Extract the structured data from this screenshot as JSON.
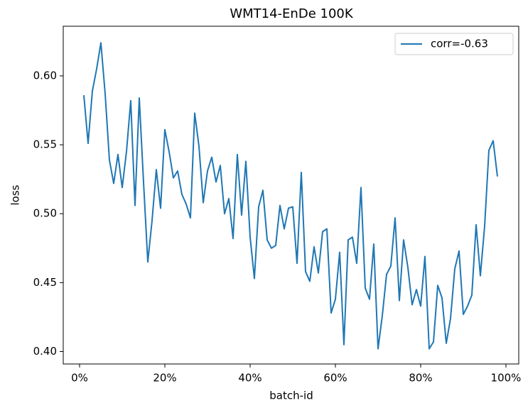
{
  "chart_data": {
    "type": "line",
    "title": "WMT14-EnDe 100K",
    "x_label": "batch-id",
    "y_label": "loss",
    "x": [
      1,
      2,
      3,
      4,
      5,
      6,
      7,
      8,
      9,
      10,
      11,
      12,
      13,
      14,
      15,
      16,
      17,
      18,
      19,
      20,
      21,
      22,
      23,
      24,
      25,
      26,
      27,
      28,
      29,
      30,
      31,
      32,
      33,
      34,
      35,
      36,
      37,
      38,
      39,
      40,
      41,
      42,
      43,
      44,
      45,
      46,
      47,
      48,
      49,
      50,
      51,
      52,
      53,
      54,
      55,
      56,
      57,
      58,
      59,
      60,
      61,
      62,
      63,
      64,
      65,
      66,
      67,
      68,
      69,
      70,
      71,
      72,
      73,
      74,
      75,
      76,
      77,
      78,
      79,
      80,
      81,
      82,
      83,
      84,
      85,
      86,
      87,
      88,
      89,
      90,
      91,
      92,
      93,
      94,
      95,
      96,
      97,
      98
    ],
    "series": [
      {
        "name": "corr=-0.63",
        "color": "#1f77b4",
        "values": [
          0.586,
          0.551,
          0.589,
          0.605,
          0.624,
          0.587,
          0.539,
          0.522,
          0.543,
          0.519,
          0.545,
          0.582,
          0.506,
          0.584,
          0.523,
          0.465,
          0.495,
          0.532,
          0.504,
          0.561,
          0.545,
          0.526,
          0.531,
          0.514,
          0.507,
          0.497,
          0.573,
          0.549,
          0.508,
          0.531,
          0.541,
          0.523,
          0.535,
          0.5,
          0.511,
          0.482,
          0.543,
          0.499,
          0.538,
          0.483,
          0.453,
          0.505,
          0.517,
          0.481,
          0.475,
          0.477,
          0.506,
          0.489,
          0.504,
          0.505,
          0.464,
          0.53,
          0.458,
          0.451,
          0.476,
          0.457,
          0.487,
          0.489,
          0.428,
          0.438,
          0.472,
          0.405,
          0.481,
          0.483,
          0.464,
          0.519,
          0.446,
          0.438,
          0.478,
          0.402,
          0.426,
          0.456,
          0.462,
          0.497,
          0.437,
          0.481,
          0.461,
          0.434,
          0.445,
          0.433,
          0.469,
          0.402,
          0.407,
          0.448,
          0.439,
          0.406,
          0.424,
          0.46,
          0.473,
          0.427,
          0.433,
          0.441,
          0.492,
          0.455,
          0.491,
          0.546,
          0.553,
          0.527
        ]
      }
    ],
    "xlim": [
      -3.83,
      103
    ],
    "ylim": [
      0.391,
      0.636
    ],
    "xticks": [
      {
        "value": 0,
        "label": "0%"
      },
      {
        "value": 20,
        "label": "20%"
      },
      {
        "value": 40,
        "label": "40%"
      },
      {
        "value": 60,
        "label": "60%"
      },
      {
        "value": 80,
        "label": "80%"
      },
      {
        "value": 100,
        "label": "100%"
      }
    ],
    "yticks": [
      {
        "value": 0.4,
        "label": "0.40"
      },
      0.45,
      {
        "value": 0.5,
        "label": "0.50"
      },
      0.55,
      {
        "value": 0.6,
        "label": "0.60"
      }
    ],
    "legend": "upper right"
  }
}
